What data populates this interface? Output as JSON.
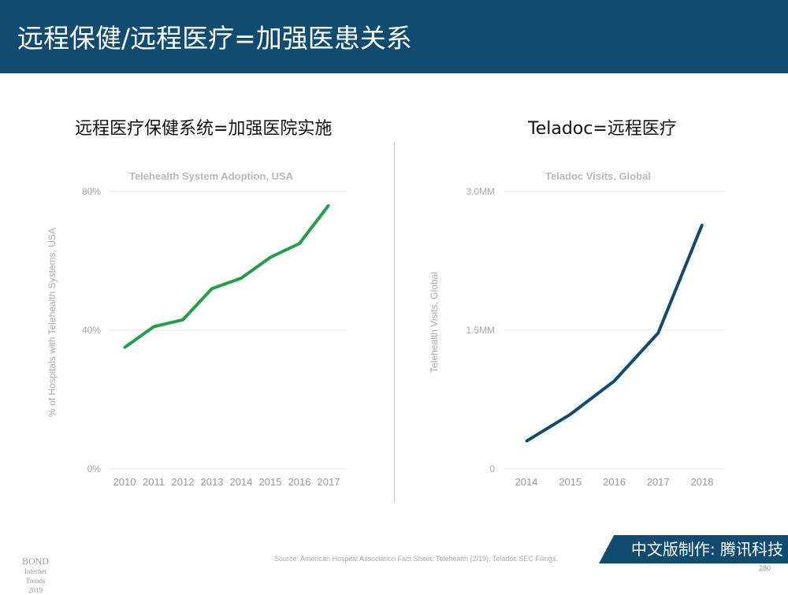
{
  "header": {
    "title": "远程保健/远程医疗=加强医患关系"
  },
  "left": {
    "subtitle": "远程医疗保健系统=加强医院实施"
  },
  "right": {
    "subtitle": "Teladoc=远程医疗"
  },
  "footer": {
    "source": "Source: American Hospital Association Fact Sheet: Telehealth (2/19), Teladoc SEC Filings.",
    "bond": "BOND",
    "bond_sub": "Internet Trends",
    "bond_year": "2019",
    "brand": "中文版制作: 腾讯科技",
    "page": "280"
  },
  "chart_data": [
    {
      "type": "line",
      "title": "Telehealth System Adoption, USA",
      "ylabel": "% of Hospitals with Telehealth Systems, USA",
      "xlabel": "",
      "categories": [
        "2010",
        "2011",
        "2012",
        "2013",
        "2014",
        "2015",
        "2016",
        "2017"
      ],
      "values": [
        35,
        41,
        43,
        52,
        55,
        61,
        65,
        76
      ],
      "ylim": [
        0,
        80
      ],
      "yticks": [
        0,
        40,
        80
      ],
      "ytick_labels": [
        "0%",
        "40%",
        "80%"
      ],
      "color": "#1fa04a",
      "grid": true
    },
    {
      "type": "line",
      "title": "Teladoc Visits, Global",
      "ylabel": "Telehealth Visits, Global",
      "xlabel": "",
      "categories": [
        "2014",
        "2015",
        "2016",
        "2017",
        "2018"
      ],
      "values": [
        0.3,
        0.59,
        0.95,
        1.47,
        2.64
      ],
      "ylim": [
        0,
        3
      ],
      "yticks": [
        0,
        1.5,
        3
      ],
      "ytick_labels": [
        "0",
        "1.5MM",
        "3.0MM"
      ],
      "color": "#0f4c70",
      "grid": true
    }
  ]
}
